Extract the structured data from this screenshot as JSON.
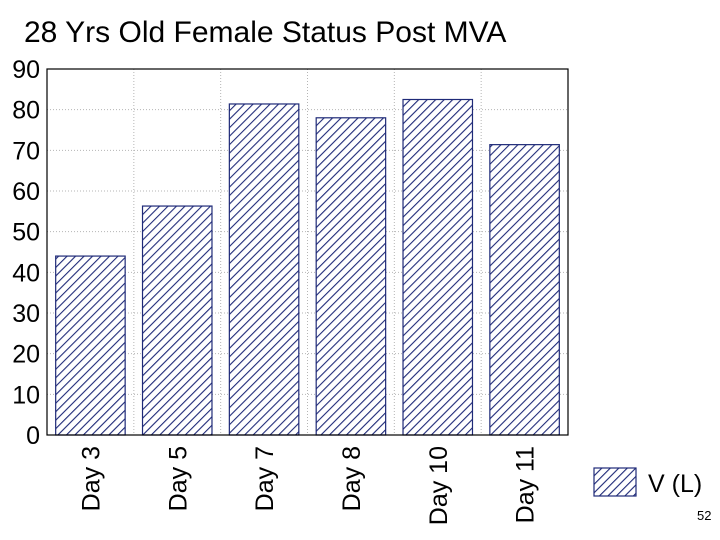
{
  "page_number": "52",
  "colors": {
    "bar_stroke": "#1f2a78",
    "hatch": "#1f2a78",
    "grid": "#b5b5b5",
    "axis": "#000000"
  },
  "chart_data": {
    "type": "bar",
    "title": "28 Yrs Old Female Status Post MVA",
    "xlabel": "",
    "ylabel": "",
    "categories": [
      "Day 3",
      "Day 5",
      "Day 7",
      "Day 8",
      "Day 10",
      "Day 11"
    ],
    "series": [
      {
        "name": "V (L)",
        "values": [
          44,
          56.3,
          81.4,
          78,
          82.5,
          71.4
        ],
        "pattern": "diagonal-hatch"
      }
    ],
    "ylim": [
      0,
      90
    ],
    "yticks": [
      0,
      10,
      20,
      30,
      40,
      50,
      60,
      70,
      80,
      90
    ],
    "grid": true,
    "legend_position": "right"
  }
}
